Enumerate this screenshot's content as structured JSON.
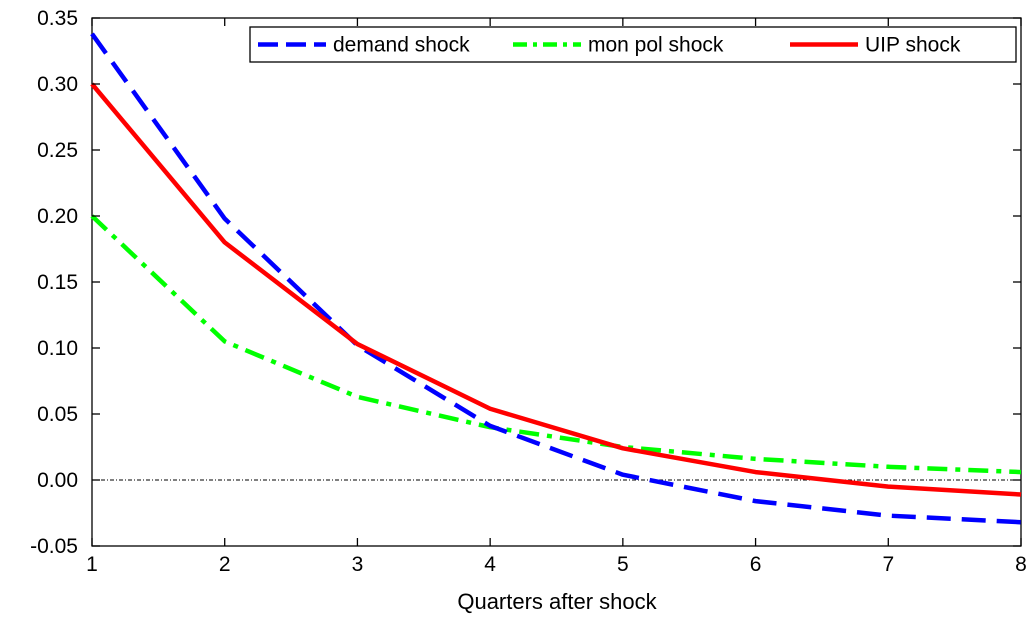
{
  "chart_data": {
    "type": "line",
    "title": "",
    "xlabel": "Quarters after shock",
    "ylabel": "",
    "x": [
      1,
      2,
      3,
      4,
      5,
      6,
      7,
      8
    ],
    "x_ticks": [
      "1",
      "2",
      "3",
      "4",
      "5",
      "6",
      "7",
      "8"
    ],
    "xlim": [
      1,
      8
    ],
    "ylim": [
      -0.05,
      0.35
    ],
    "y_ticks": [
      "-0.05",
      "0.00",
      "0.05",
      "0.10",
      "0.15",
      "0.20",
      "0.25",
      "0.30",
      "0.35"
    ],
    "grid": false,
    "zero_line": true,
    "legend_position": "top-right",
    "series": [
      {
        "name": "demand shock",
        "color": "#0000ff",
        "style": "dashed",
        "values": [
          0.338,
          0.198,
          0.102,
          0.041,
          0.004,
          -0.016,
          -0.027,
          -0.032
        ]
      },
      {
        "name": "mon pol shock",
        "color": "#00ff00",
        "style": "dash-dot",
        "values": [
          0.2,
          0.105,
          0.063,
          0.04,
          0.025,
          0.016,
          0.01,
          0.006
        ]
      },
      {
        "name": "UIP shock",
        "color": "#ff0000",
        "style": "solid",
        "values": [
          0.3,
          0.18,
          0.103,
          0.054,
          0.024,
          0.006,
          -0.005,
          -0.011
        ]
      }
    ]
  }
}
